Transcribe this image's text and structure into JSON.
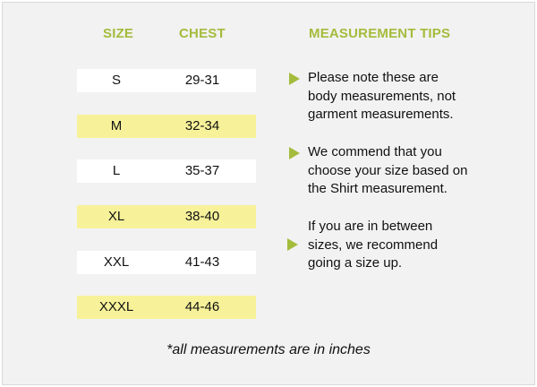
{
  "headers": {
    "size": "SIZE",
    "chest": "CHEST",
    "tips": "MEASUREMENT TIPS"
  },
  "rows": [
    {
      "size": "S",
      "chest": "29-31",
      "highlight": false
    },
    {
      "size": "M",
      "chest": "32-34",
      "highlight": true
    },
    {
      "size": "L",
      "chest": "35-37",
      "highlight": false
    },
    {
      "size": "XL",
      "chest": "38-40",
      "highlight": true
    },
    {
      "size": "XXL",
      "chest": "41-43",
      "highlight": false
    },
    {
      "size": "XXXL",
      "chest": "44-46",
      "highlight": true
    }
  ],
  "tips": [
    {
      "lines": [
        "Please note these are",
        "body measurements, not",
        "garment measurements."
      ],
      "icon": "triangle-right-icon"
    },
    {
      "lines": [
        "We commend that you",
        "choose your size based on",
        "the Shirt measurement."
      ],
      "icon": "triangle-right-icon"
    },
    {
      "lines": [
        "If you are in between",
        "sizes, we recommend",
        "going a size up."
      ],
      "icon": "triangle-right-icon"
    }
  ],
  "footnote": "*all measurements are in inches",
  "colors": {
    "accent": "#a4bc3c",
    "highlight_row": "#f7f29a",
    "plain_row": "#ffffff",
    "background": "#f2f2f2"
  }
}
